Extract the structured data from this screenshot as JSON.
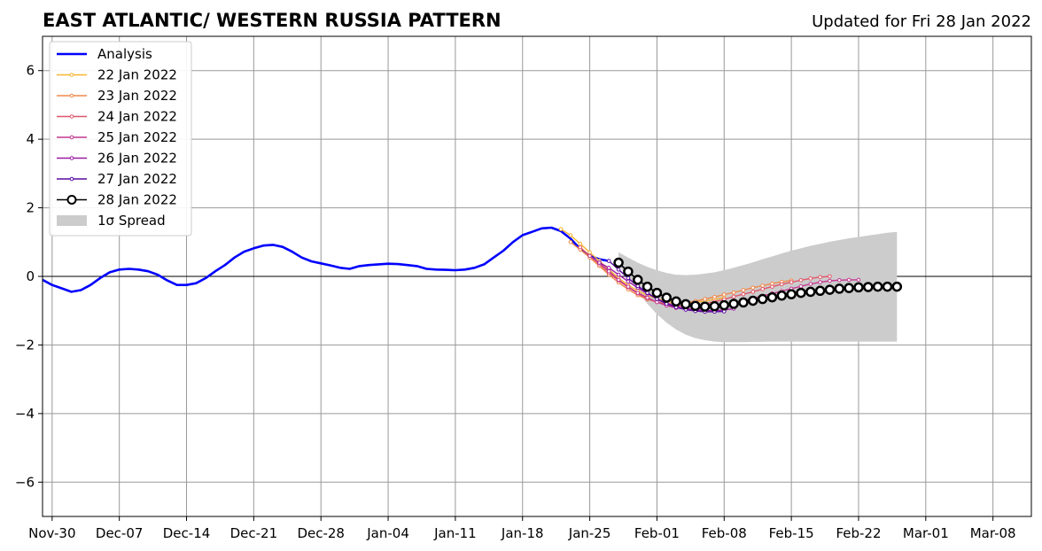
{
  "chart_data": {
    "type": "line",
    "title": "EAST ATLANTIC/ WESTERN RUSSIA PATTERN",
    "subtitle": "Updated for Fri 28 Jan 2022",
    "x_axis": {
      "tick_labels": [
        "Nov-30",
        "Dec-07",
        "Dec-14",
        "Dec-21",
        "Dec-28",
        "Jan-04",
        "Jan-11",
        "Jan-18",
        "Jan-25",
        "Feb-01",
        "Feb-08",
        "Feb-15",
        "Feb-22",
        "Mar-01",
        "Mar-08"
      ],
      "tick_dates": [
        "2021-11-30",
        "2021-12-07",
        "2021-12-14",
        "2021-12-21",
        "2021-12-28",
        "2022-01-04",
        "2022-01-11",
        "2022-01-18",
        "2022-01-25",
        "2022-02-01",
        "2022-02-08",
        "2022-02-15",
        "2022-02-22",
        "2022-03-01",
        "2022-03-08"
      ],
      "range": [
        "2021-11-29",
        "2022-03-12"
      ]
    },
    "y_axis": {
      "ticks": [
        -6,
        -4,
        -2,
        0,
        2,
        4,
        6
      ],
      "tick_labels": [
        "−6",
        "−4",
        "−2",
        "0",
        "2",
        "4",
        "6"
      ],
      "range": [
        -7,
        7
      ]
    },
    "grid": true,
    "legend": {
      "placement": "top-left",
      "entries": [
        "Analysis",
        "22 Jan 2022",
        "23 Jan 2022",
        "24 Jan 2022",
        "25 Jan 2022",
        "26 Jan 2022",
        "27 Jan 2022",
        "28 Jan 2022",
        "1σ Spread"
      ]
    },
    "colors": {
      "analysis": "#0000ff",
      "f22": "#f7b431",
      "f23": "#f0884a",
      "f24": "#e0566a",
      "f25": "#c33890",
      "f26": "#9a1aa6",
      "f27": "#5a0aa0",
      "f28": "#000000",
      "spread": "#cccccc"
    },
    "analysis": {
      "name": "Analysis",
      "start_date": "2021-11-29",
      "values": [
        -0.1,
        -0.25,
        -0.35,
        -0.45,
        -0.4,
        -0.25,
        -0.05,
        0.12,
        0.2,
        0.22,
        0.2,
        0.15,
        0.05,
        -0.12,
        -0.25,
        -0.25,
        -0.2,
        -0.05,
        0.15,
        0.33,
        0.55,
        0.72,
        0.82,
        0.9,
        0.92,
        0.86,
        0.72,
        0.55,
        0.44,
        0.38,
        0.32,
        0.25,
        0.22,
        0.3,
        0.33,
        0.35,
        0.37,
        0.36,
        0.33,
        0.3,
        0.22,
        0.2,
        0.19,
        0.18,
        0.2,
        0.25,
        0.35,
        0.55,
        0.75,
        1.0,
        1.2,
        1.3,
        1.4,
        1.42,
        1.32,
        1.1,
        0.8,
        0.6,
        0.5,
        0.45
      ]
    },
    "forecasts": [
      {
        "name": "22 Jan 2022",
        "start_date": "2022-01-22",
        "values": [
          1.38,
          1.2,
          0.95,
          0.7,
          0.45,
          0.2,
          -0.05,
          -0.25,
          -0.42,
          -0.55,
          -0.65,
          -0.72,
          -0.76,
          -0.78,
          -0.76,
          -0.72,
          -0.67,
          -0.62
        ]
      },
      {
        "name": "23 Jan 2022",
        "start_date": "2022-01-23",
        "values": [
          1.0,
          0.78,
          0.55,
          0.3,
          0.05,
          -0.18,
          -0.38,
          -0.55,
          -0.67,
          -0.75,
          -0.8,
          -0.8,
          -0.77,
          -0.72,
          -0.66,
          -0.6,
          -0.53,
          -0.47,
          -0.4,
          -0.33,
          -0.27,
          -0.21,
          -0.16,
          -0.12
        ]
      },
      {
        "name": "24 Jan 2022",
        "start_date": "2022-01-24",
        "values": [
          0.85,
          0.6,
          0.35,
          0.1,
          -0.12,
          -0.32,
          -0.5,
          -0.65,
          -0.75,
          -0.82,
          -0.86,
          -0.87,
          -0.85,
          -0.8,
          -0.74,
          -0.67,
          -0.59,
          -0.52,
          -0.45,
          -0.37,
          -0.3,
          -0.23,
          -0.17,
          -0.11,
          -0.06,
          -0.02,
          0.0
        ]
      },
      {
        "name": "25 Jan 2022",
        "start_date": "2022-01-25",
        "values": [
          0.6,
          0.4,
          0.15,
          -0.1,
          -0.3,
          -0.48,
          -0.62,
          -0.75,
          -0.85,
          -0.92,
          -0.95,
          -0.95,
          -0.93,
          -0.89,
          -0.84,
          -0.78,
          -0.71,
          -0.64,
          -0.57,
          -0.5,
          -0.43,
          -0.36,
          -0.29,
          -0.22,
          -0.17,
          -0.13,
          -0.11,
          -0.1,
          -0.1
        ]
      },
      {
        "name": "26 Jan 2022",
        "start_date": "2022-01-26",
        "values": [
          0.4,
          0.25,
          0.05,
          -0.15,
          -0.33,
          -0.5,
          -0.65,
          -0.78,
          -0.88,
          -0.95,
          -0.98,
          -1.0,
          -1.0,
          -0.98,
          -0.94
        ]
      },
      {
        "name": "27 Jan 2022",
        "start_date": "2022-01-27",
        "values": [
          0.45,
          0.2,
          -0.05,
          -0.28,
          -0.48,
          -0.66,
          -0.8,
          -0.9,
          -0.97,
          -1.01,
          -1.03,
          -1.03,
          -1.02
        ]
      },
      {
        "name": "28 Jan 2022",
        "start_date": "2022-01-28",
        "values": [
          0.4,
          0.14,
          -0.1,
          -0.3,
          -0.48,
          -0.62,
          -0.73,
          -0.81,
          -0.86,
          -0.88,
          -0.87,
          -0.84,
          -0.8,
          -0.76,
          -0.71,
          -0.66,
          -0.61,
          -0.56,
          -0.52,
          -0.48,
          -0.45,
          -0.42,
          -0.39,
          -0.36,
          -0.34,
          -0.32,
          -0.31,
          -0.3,
          -0.3,
          -0.3
        ]
      }
    ],
    "spread": {
      "name": "1σ Spread",
      "start_date": "2022-01-28",
      "upper": [
        0.7,
        0.55,
        0.4,
        0.28,
        0.18,
        0.1,
        0.05,
        0.04,
        0.05,
        0.08,
        0.12,
        0.18,
        0.25,
        0.33,
        0.41,
        0.5,
        0.58,
        0.67,
        0.75,
        0.82,
        0.89,
        0.95,
        1.01,
        1.06,
        1.11,
        1.15,
        1.19,
        1.23,
        1.27,
        1.3
      ],
      "lower": [
        0.35,
        -0.05,
        -0.45,
        -0.8,
        -1.1,
        -1.35,
        -1.55,
        -1.7,
        -1.8,
        -1.86,
        -1.9,
        -1.92,
        -1.92,
        -1.92,
        -1.91,
        -1.91,
        -1.9,
        -1.9,
        -1.9,
        -1.9,
        -1.9,
        -1.9,
        -1.9,
        -1.9,
        -1.9,
        -1.9,
        -1.9,
        -1.9,
        -1.9,
        -1.9
      ]
    }
  }
}
